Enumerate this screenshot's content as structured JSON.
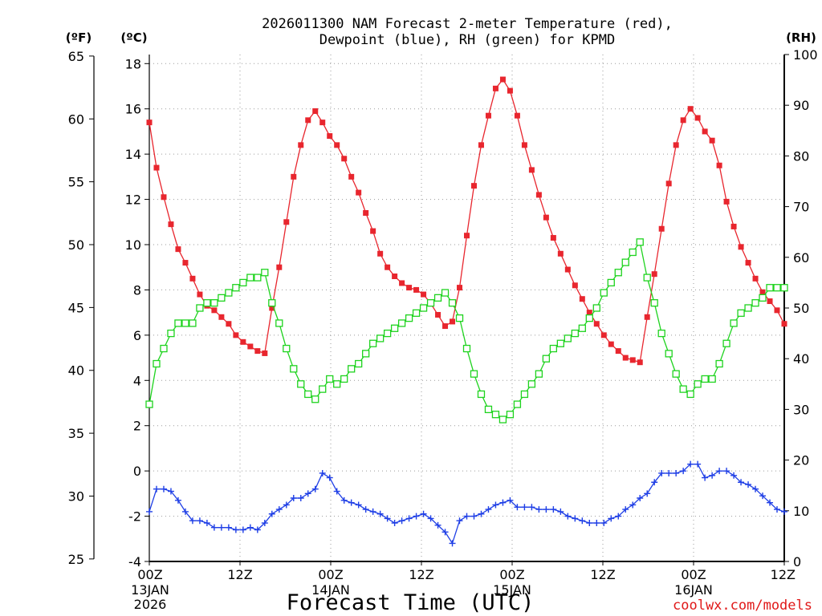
{
  "chart_data": {
    "type": "line",
    "title": [
      "2026011300 NAM Forecast 2-meter Temperature (red),",
      "Dewpoint (blue), RH (green) for KPMD"
    ],
    "xlabel": "Forecast Time (UTC)",
    "watermark": "coolwx.com/models",
    "units": {
      "fahrenheit": "(ºF)",
      "celsius": "(ºC)",
      "rh": "(RH)"
    },
    "x_range_hours": [
      0,
      84
    ],
    "x_ticks": [
      {
        "hour": 0,
        "label": "00Z",
        "date": "13JAN",
        "year": "2026"
      },
      {
        "hour": 12,
        "label": "12Z"
      },
      {
        "hour": 24,
        "label": "00Z",
        "date": "14JAN"
      },
      {
        "hour": 36,
        "label": "12Z"
      },
      {
        "hour": 48,
        "label": "00Z",
        "date": "15JAN"
      },
      {
        "hour": 60,
        "label": "12Z"
      },
      {
        "hour": 72,
        "label": "00Z",
        "date": "16JAN"
      },
      {
        "hour": 84,
        "label": "12Z"
      }
    ],
    "celsius_axis": {
      "min": -4,
      "max": 18.4,
      "ticks": [
        "-4",
        "-2",
        "0",
        "2",
        "4",
        "6",
        "8",
        "10",
        "12",
        "14",
        "16",
        "18"
      ]
    },
    "fahrenheit_axis": {
      "ticks": [
        "25",
        "30",
        "35",
        "40",
        "45",
        "50",
        "55",
        "60",
        "65"
      ]
    },
    "rh_axis": {
      "min": 0,
      "max": 100,
      "ticks": [
        "0",
        "10",
        "20",
        "30",
        "40",
        "50",
        "60",
        "70",
        "80",
        "90",
        "100"
      ]
    },
    "series": [
      {
        "name": "2-meter Temperature (ºC)",
        "color": "#e8262e",
        "marker": "filled-square",
        "axis": "celsius",
        "values": [
          15.4,
          13.4,
          12.1,
          10.9,
          9.8,
          9.2,
          8.5,
          7.8,
          7.3,
          7.1,
          6.8,
          6.5,
          6.0,
          5.7,
          5.5,
          5.3,
          5.2,
          7.2,
          9.0,
          11.0,
          13.0,
          14.4,
          15.5,
          15.9,
          15.4,
          14.8,
          14.4,
          13.8,
          13.0,
          12.3,
          11.4,
          10.6,
          9.6,
          9.0,
          8.6,
          8.3,
          8.1,
          8.0,
          7.8,
          7.4,
          6.9,
          6.4,
          6.6,
          8.1,
          10.4,
          12.6,
          14.4,
          15.7,
          16.9,
          17.3,
          16.8,
          15.7,
          14.4,
          13.3,
          12.2,
          11.2,
          10.3,
          9.6,
          8.9,
          8.2,
          7.6,
          7.0,
          6.5,
          6.0,
          5.6,
          5.3,
          5.0,
          4.9,
          4.8,
          6.8,
          8.7,
          10.7,
          12.7,
          14.4,
          15.5,
          16.0,
          15.6,
          15.0,
          14.6,
          13.5,
          11.9,
          10.8,
          9.9,
          9.2,
          8.5,
          7.9,
          7.5,
          7.1,
          6.5
        ]
      },
      {
        "name": "Dewpoint (ºC)",
        "color": "#1f3fe6",
        "marker": "plus",
        "axis": "celsius",
        "values": [
          -1.8,
          -0.8,
          -0.8,
          -0.9,
          -1.3,
          -1.8,
          -2.2,
          -2.2,
          -2.3,
          -2.5,
          -2.5,
          -2.5,
          -2.6,
          -2.6,
          -2.5,
          -2.6,
          -2.3,
          -1.9,
          -1.7,
          -1.5,
          -1.2,
          -1.2,
          -1.0,
          -0.8,
          -0.1,
          -0.3,
          -0.9,
          -1.3,
          -1.4,
          -1.5,
          -1.7,
          -1.8,
          -1.9,
          -2.1,
          -2.3,
          -2.2,
          -2.1,
          -2.0,
          -1.9,
          -2.1,
          -2.4,
          -2.7,
          -3.2,
          -2.2,
          -2.0,
          -2.0,
          -1.9,
          -1.7,
          -1.5,
          -1.4,
          -1.3,
          -1.6,
          -1.6,
          -1.6,
          -1.7,
          -1.7,
          -1.7,
          -1.8,
          -2.0,
          -2.1,
          -2.2,
          -2.3,
          -2.3,
          -2.3,
          -2.1,
          -2.0,
          -1.7,
          -1.5,
          -1.2,
          -1.0,
          -0.5,
          -0.1,
          -0.1,
          -0.1,
          0.0,
          0.3,
          0.3,
          -0.3,
          -0.2,
          0.0,
          0.0,
          -0.2,
          -0.5,
          -0.6,
          -0.8,
          -1.1,
          -1.4,
          -1.7,
          -1.8
        ]
      },
      {
        "name": "RH (%)",
        "color": "#1ed31e",
        "marker": "open-square",
        "axis": "rh",
        "values": [
          31,
          39,
          42,
          45,
          47,
          47,
          47,
          50,
          51,
          51,
          52,
          53,
          54,
          55,
          56,
          56,
          57,
          51,
          47,
          42,
          38,
          35,
          33,
          32,
          34,
          36,
          35,
          36,
          38,
          39,
          41,
          43,
          44,
          45,
          46,
          47,
          48,
          49,
          50,
          51,
          52,
          53,
          51,
          48,
          42,
          37,
          33,
          30,
          29,
          28,
          29,
          31,
          33,
          35,
          37,
          40,
          42,
          43,
          44,
          45,
          46,
          48,
          50,
          53,
          55,
          57,
          59,
          61,
          63,
          56,
          51,
          45,
          41,
          37,
          34,
          33,
          35,
          36,
          36,
          39,
          43,
          47,
          49,
          50,
          51,
          52,
          54,
          54,
          54
        ]
      }
    ]
  }
}
